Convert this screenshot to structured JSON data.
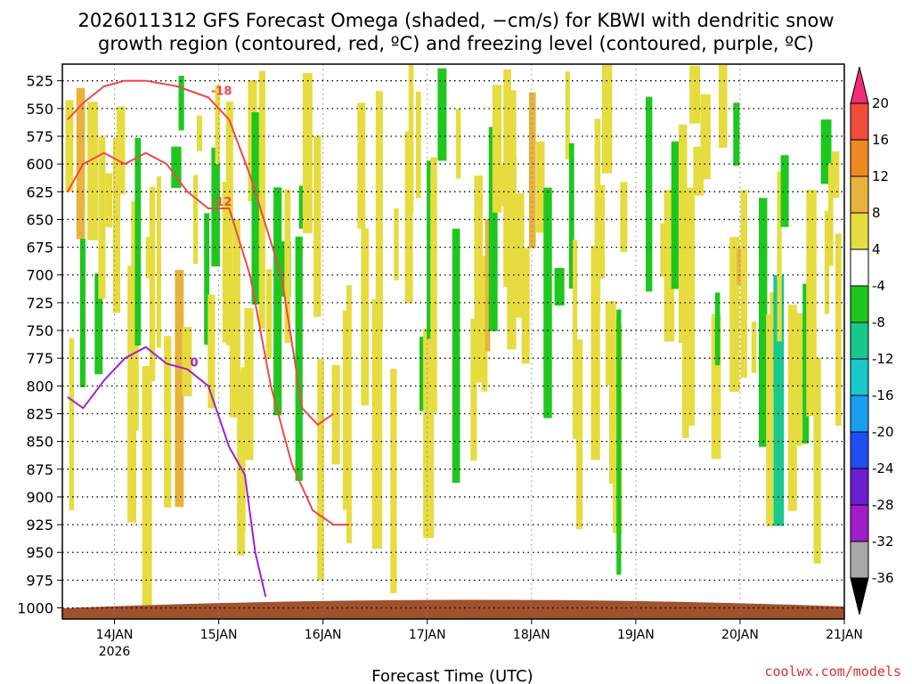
{
  "chart_data": {
    "type": "heatmap",
    "title_line1": "2026011312 GFS Forecast Omega (shaded, −cm/s) for KBWI with dendritic snow",
    "title_line2": "growth region (contoured, red, ºC) and freezing level (contoured, purple, ºC)",
    "xlabel": "Forecast Time (UTC)",
    "credit": "coolwx.com/models",
    "x_ticks": [
      {
        "label": "14JAN",
        "sub": "2026",
        "day": 14
      },
      {
        "label": "15JAN",
        "sub": "",
        "day": 15
      },
      {
        "label": "16JAN",
        "sub": "",
        "day": 16
      },
      {
        "label": "17JAN",
        "sub": "",
        "day": 17
      },
      {
        "label": "18JAN",
        "sub": "",
        "day": 18
      },
      {
        "label": "19JAN",
        "sub": "",
        "day": 19
      },
      {
        "label": "20JAN",
        "sub": "",
        "day": 20
      },
      {
        "label": "21JAN",
        "sub": "",
        "day": 21
      }
    ],
    "xlim": [
      13.5,
      21.0
    ],
    "ylim_hpa": [
      1000,
      525
    ],
    "y_ticks": [
      525,
      550,
      575,
      600,
      625,
      650,
      675,
      700,
      725,
      750,
      775,
      800,
      825,
      850,
      875,
      900,
      925,
      950,
      975,
      1000
    ],
    "colorbar": {
      "labels": [
        "20",
        "16",
        "12",
        "8",
        "4",
        "-4",
        "-8",
        "-12",
        "-16",
        "-20",
        "-24",
        "-28",
        "-32",
        "-36"
      ],
      "colors": [
        "#f02c78",
        "#f04a3a",
        "#ee8a22",
        "#e7b33a",
        "#e6dc40",
        "#ffffff",
        "#1ec71e",
        "#19c98c",
        "#19c9c9",
        "#1a9ef0",
        "#1f4df0",
        "#6a1ecf",
        "#a01ec8",
        "#a8a8a8",
        "#000000"
      ]
    },
    "contours": {
      "dendritic_minus12": {
        "label": "-12",
        "color": "#f04848"
      },
      "dendritic_minus18": {
        "label": "-18",
        "color": "#f04848"
      },
      "freezing_level": {
        "label": "0",
        "color": "#a020d0"
      }
    },
    "series": [
      {
        "name": "-12C dendritic contour (pressure hPa)",
        "x": [
          13.55,
          13.7,
          13.9,
          14.1,
          14.3,
          14.5,
          14.7,
          14.9,
          15.1,
          15.3,
          15.5,
          15.7,
          15.9,
          16.1,
          16.25
        ],
        "y": [
          625,
          600,
          590,
          600,
          590,
          600,
          625,
          640,
          640,
          700,
          800,
          870,
          912,
          925,
          925
        ]
      },
      {
        "name": "-18C dendritic contour (pressure hPa)",
        "x": [
          13.55,
          13.7,
          13.9,
          14.1,
          14.3,
          14.6,
          14.9,
          15.1,
          15.3,
          15.6,
          15.8,
          15.95,
          16.1
        ],
        "y": [
          560,
          545,
          530,
          525,
          525,
          530,
          540,
          560,
          610,
          700,
          820,
          835,
          825
        ]
      },
      {
        "name": "Freezing level 0C contour (pressure hPa)",
        "x": [
          13.55,
          13.7,
          13.9,
          14.1,
          14.3,
          14.5,
          14.7,
          14.9,
          15.1,
          15.25,
          15.35,
          15.45
        ],
        "y": [
          810,
          820,
          795,
          775,
          765,
          780,
          785,
          800,
          855,
          880,
          950,
          990
        ]
      }
    ]
  }
}
